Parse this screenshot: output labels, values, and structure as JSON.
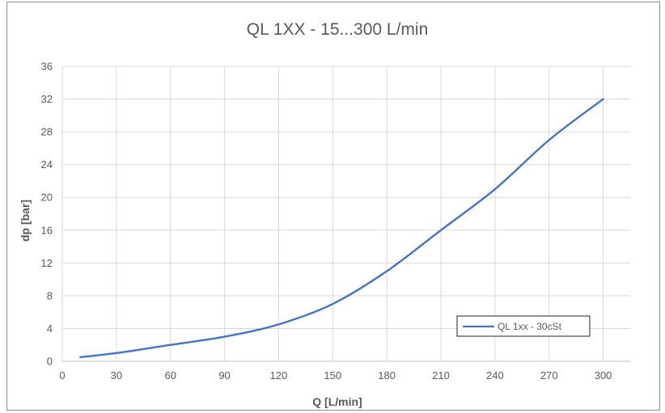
{
  "chart_data": {
    "type": "line",
    "title": "QL 1XX - 15...300 L/min",
    "xlabel": "Q [L/min]",
    "ylabel": "dp [bar]",
    "xlim": [
      0,
      315
    ],
    "ylim": [
      0,
      36
    ],
    "xticks": [
      0,
      30,
      60,
      90,
      120,
      150,
      180,
      210,
      240,
      270,
      300
    ],
    "yticks": [
      0,
      4,
      8,
      12,
      16,
      20,
      24,
      28,
      32,
      36
    ],
    "grid": true,
    "legend_position": "bottom-right",
    "series": [
      {
        "name": "QL 1xx - 30cSt",
        "color": "#4472c4",
        "x": [
          10,
          30,
          60,
          90,
          120,
          150,
          180,
          210,
          240,
          270,
          300
        ],
        "y": [
          0.5,
          1.0,
          2.0,
          3.0,
          4.5,
          7.0,
          11.0,
          16.0,
          21.0,
          27.0,
          32.0
        ]
      }
    ]
  }
}
